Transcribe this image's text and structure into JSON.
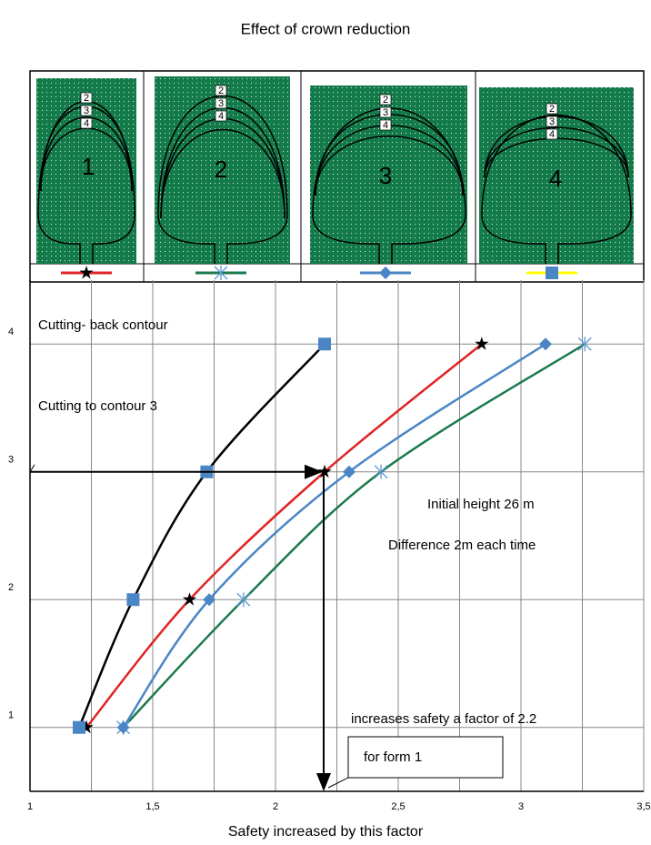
{
  "chart_data": {
    "type": "line",
    "title": "Effect of crown reduction",
    "x_label": "Safety increased by this factor",
    "xlim": [
      1,
      3.5
    ],
    "ylim": [
      0.5,
      4.5
    ],
    "xticks": [
      1,
      {
        "value": 1.5,
        "label": "1,5"
      },
      2,
      {
        "value": 2.5,
        "label": "2,5"
      },
      3,
      {
        "value": 3.5,
        "label": "3,5"
      }
    ],
    "x_minor_grid": [
      1.25,
      1.75,
      2.25,
      2.75,
      3.25
    ],
    "yticks": [
      1,
      2,
      3,
      4
    ],
    "grid": true,
    "forms": [
      "1",
      "2",
      "3",
      "4"
    ],
    "contour_labels": [
      "2",
      "3",
      "4"
    ],
    "series": [
      {
        "color": "#e02424",
        "marker": "star",
        "marker_color": "#000000",
        "legend_color": "#e02424",
        "x": [
          1.23,
          1.65,
          2.2,
          2.84
        ],
        "values": [
          1,
          2,
          3,
          4
        ]
      },
      {
        "color": "#1b7a4c",
        "marker": "asterisk",
        "marker_color": "#5b9bd5",
        "legend_color": "#1b7a4c",
        "x": [
          1.38,
          1.87,
          2.43,
          3.26
        ],
        "values": [
          1,
          2,
          3,
          4
        ]
      },
      {
        "color": "#4a86c5",
        "marker": "diamond",
        "marker_color": "#4a86c5",
        "legend_color": "#4a86c5",
        "x": [
          1.38,
          1.73,
          2.3,
          3.1
        ],
        "values": [
          1,
          2,
          3,
          4
        ]
      },
      {
        "color": "#000000",
        "marker": "square",
        "marker_color": "#4a86c5",
        "legend_color": "#ffff00",
        "x": [
          1.2,
          1.42,
          1.72,
          2.2
        ],
        "values": [
          1,
          2,
          3,
          4
        ]
      }
    ],
    "annotations": [
      "Cutting- back contour",
      "Cutting to contour  3",
      "Initial height 26 m",
      "Difference  2m each time",
      "increases safety a factor of 2.2",
      "for form 1"
    ]
  }
}
